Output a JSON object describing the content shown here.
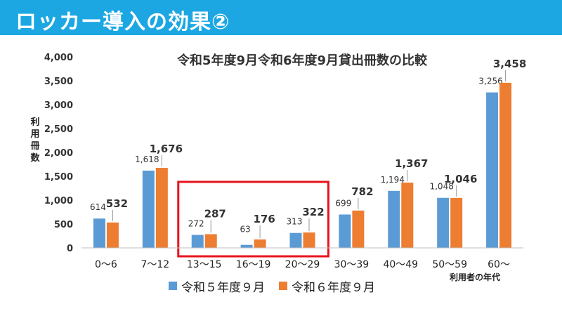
{
  "page": {
    "title": "ロッカー導入の効果②",
    "accent_color": "#1ca7e3",
    "highlight_color": "#e8141c"
  },
  "chart_data": {
    "type": "bar",
    "title": "令和5年度9月令和6年度9月貸出冊数の比較",
    "xlabel": "利用者の年代",
    "ylabel": "利用冊数",
    "ylim": [
      0,
      4000
    ],
    "yticks": [
      "0",
      "500",
      "1,000",
      "1,500",
      "2,000",
      "2,500",
      "3,000",
      "3,500",
      "4,000"
    ],
    "ytick_values": [
      0,
      500,
      1000,
      1500,
      2000,
      2500,
      3000,
      3500,
      4000
    ],
    "categories": [
      "0～6",
      "7～12",
      "13～15",
      "16～19",
      "20～29",
      "30～39",
      "40～49",
      "50～59",
      "60～"
    ],
    "series": [
      {
        "name": "令和５年度９月",
        "color": "#5b9bd5",
        "values": [
          614,
          1618,
          272,
          63,
          313,
          699,
          1194,
          1048,
          3256
        ],
        "labels": [
          "614",
          "1,618",
          "272",
          "63",
          "313",
          "699",
          "1,194",
          "1,048",
          "3,256"
        ]
      },
      {
        "name": "令和６年度９月",
        "color": "#ed7d31",
        "values": [
          532,
          1676,
          287,
          176,
          322,
          782,
          1367,
          1046,
          3458
        ],
        "labels": [
          "532",
          "1,676",
          "287",
          "176",
          "322",
          "782",
          "1,367",
          "1,046",
          "3,458"
        ]
      }
    ],
    "grid": false,
    "legend_position": "bottom",
    "highlighted_categories": [
      "13～15",
      "16～19",
      "20～29"
    ]
  }
}
